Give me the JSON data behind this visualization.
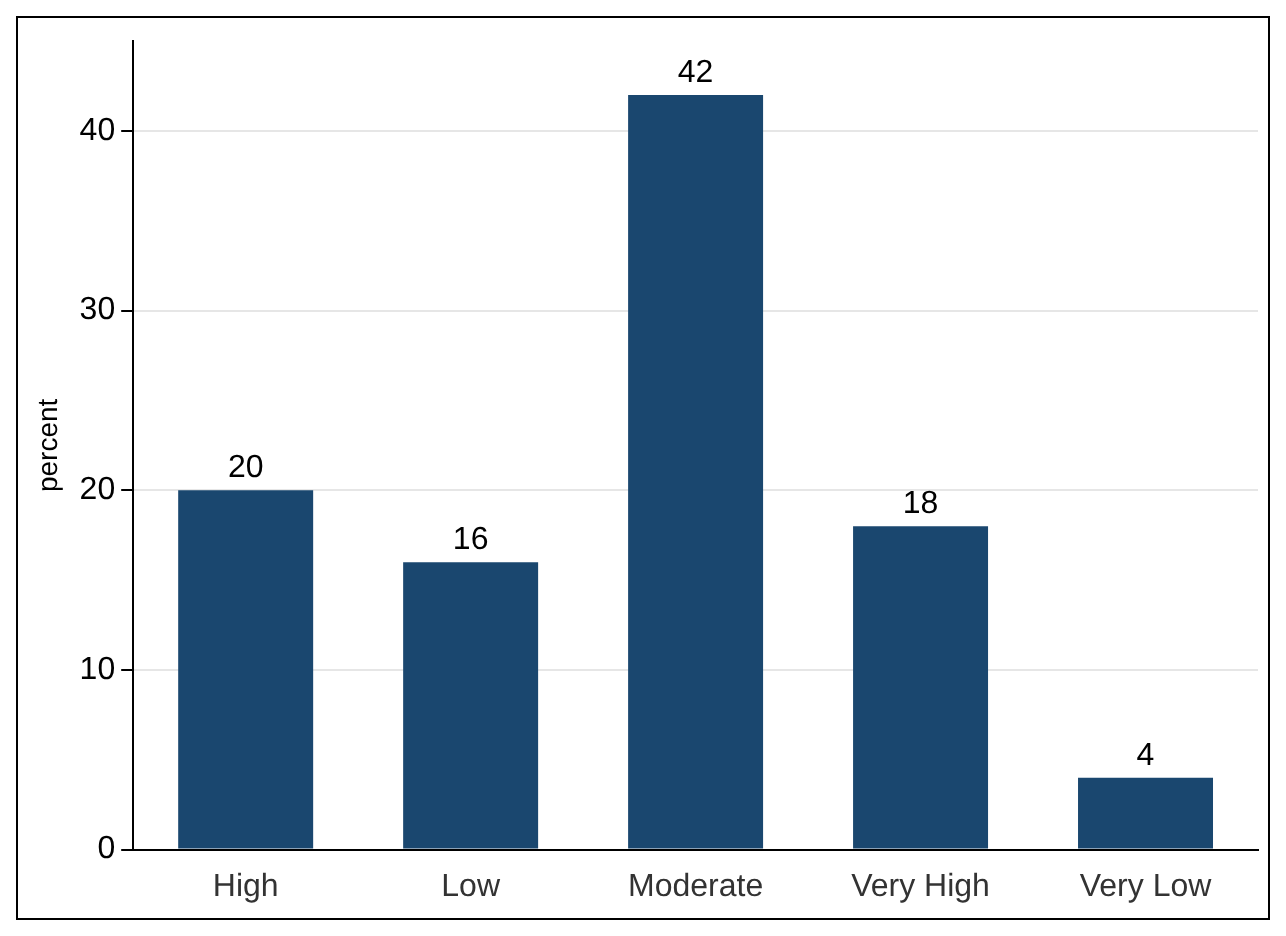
{
  "chart_data": {
    "type": "bar",
    "ylabel": "percent",
    "categories": [
      "High",
      "Low",
      "Moderate",
      "Very High",
      "Very Low"
    ],
    "values": [
      20,
      16,
      42,
      18,
      4
    ],
    "color": "#1a476f",
    "ylim": [
      0,
      45
    ],
    "yticks": [
      0,
      10,
      20,
      30,
      40
    ],
    "grid": "y",
    "data_labels": true,
    "legend": false
  }
}
